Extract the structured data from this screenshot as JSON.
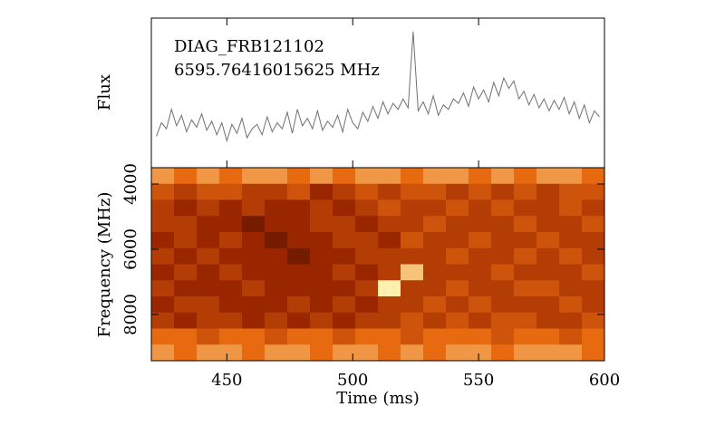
{
  "chart_data": [
    {
      "type": "line",
      "ylabel": "Flux",
      "annotations": [
        "DIAG_FRB121102",
        "6595.76416015625 MHz"
      ],
      "xlim": [
        420,
        600
      ],
      "ylim": [
        0,
        10
      ],
      "xticks": [
        450,
        500,
        550,
        600
      ],
      "x": [
        422,
        424,
        426,
        428,
        430,
        432,
        434,
        436,
        438,
        440,
        442,
        444,
        446,
        448,
        450,
        452,
        454,
        456,
        458,
        460,
        462,
        464,
        466,
        468,
        470,
        472,
        474,
        476,
        478,
        480,
        482,
        484,
        486,
        488,
        490,
        492,
        494,
        496,
        498,
        500,
        502,
        504,
        506,
        508,
        510,
        512,
        514,
        516,
        518,
        520,
        522,
        524,
        526,
        528,
        530,
        532,
        534,
        536,
        538,
        540,
        542,
        544,
        546,
        548,
        550,
        552,
        554,
        556,
        558,
        560,
        562,
        564,
        566,
        568,
        570,
        572,
        574,
        576,
        578,
        580,
        582,
        584,
        586,
        588,
        590,
        592,
        594,
        596,
        598
      ],
      "series": [
        {
          "color": "#707070",
          "values": [
            2.1,
            3.0,
            2.6,
            3.9,
            2.8,
            3.5,
            2.4,
            3.2,
            2.7,
            3.6,
            2.5,
            3.1,
            2.2,
            3.0,
            1.8,
            2.9,
            2.3,
            3.3,
            2.0,
            2.6,
            2.9,
            2.2,
            3.4,
            2.4,
            3.0,
            2.6,
            3.7,
            2.3,
            3.9,
            2.8,
            3.3,
            2.6,
            3.8,
            2.5,
            3.1,
            2.7,
            3.5,
            2.4,
            3.9,
            3.0,
            2.6,
            3.7,
            3.1,
            4.1,
            3.3,
            4.4,
            3.6,
            4.3,
            3.9,
            4.6,
            4.0,
            9.1,
            3.8,
            4.4,
            3.6,
            4.8,
            3.5,
            4.2,
            3.9,
            4.6,
            4.3,
            5.0,
            4.1,
            5.4,
            4.6,
            5.2,
            4.4,
            5.7,
            4.8,
            6.0,
            5.3,
            5.8,
            4.6,
            5.1,
            4.2,
            4.9,
            4.0,
            4.6,
            3.8,
            4.5,
            3.9,
            4.7,
            3.6,
            4.4,
            3.3,
            4.2,
            3.0,
            3.8,
            3.4
          ]
        }
      ]
    },
    {
      "type": "heatmap",
      "xlabel": "Time (ms)",
      "ylabel": "Frequency (MHz)",
      "xlim": [
        420,
        600
      ],
      "ylim": [
        3500,
        9420
      ],
      "xticks": [
        450,
        500,
        550,
        600
      ],
      "yticks": [
        4000,
        6000,
        8000
      ],
      "zlim": [
        0,
        9
      ],
      "colors": [
        "#2a0500",
        "#9a2600",
        "#e86a10",
        "#fff0b0"
      ],
      "z": [
        [
          7,
          6,
          7,
          6,
          7,
          7,
          6,
          7,
          6,
          7,
          7,
          6,
          7,
          7,
          6,
          7,
          6,
          7,
          7,
          6
        ],
        [
          5,
          4,
          5,
          5,
          4,
          4,
          5,
          3,
          4,
          5,
          4,
          5,
          5,
          4,
          5,
          4,
          5,
          4,
          5,
          5
        ],
        [
          4,
          3,
          4,
          3,
          4,
          3,
          3,
          4,
          3,
          4,
          5,
          4,
          4,
          5,
          4,
          5,
          4,
          4,
          5,
          4
        ],
        [
          4,
          4,
          3,
          3,
          2,
          3,
          3,
          4,
          4,
          3,
          4,
          4,
          5,
          4,
          4,
          4,
          5,
          4,
          4,
          5
        ],
        [
          3,
          4,
          3,
          4,
          3,
          2,
          3,
          3,
          4,
          4,
          3,
          5,
          4,
          4,
          5,
          4,
          4,
          5,
          4,
          4
        ],
        [
          4,
          3,
          4,
          3,
          3,
          3,
          2,
          3,
          3,
          4,
          4,
          4,
          4,
          5,
          4,
          4,
          5,
          4,
          5,
          4
        ],
        [
          3,
          4,
          3,
          4,
          3,
          3,
          3,
          3,
          4,
          3,
          4,
          8,
          4,
          4,
          4,
          5,
          4,
          4,
          4,
          5
        ],
        [
          4,
          3,
          3,
          3,
          4,
          3,
          3,
          3,
          3,
          4,
          9,
          4,
          4,
          5,
          4,
          4,
          5,
          5,
          4,
          4
        ],
        [
          3,
          4,
          4,
          3,
          3,
          3,
          4,
          3,
          4,
          3,
          4,
          4,
          5,
          4,
          5,
          4,
          4,
          4,
          5,
          4
        ],
        [
          4,
          3,
          4,
          4,
          3,
          4,
          3,
          4,
          3,
          4,
          4,
          5,
          4,
          5,
          4,
          5,
          5,
          4,
          4,
          5
        ],
        [
          6,
          6,
          5,
          6,
          6,
          5,
          6,
          6,
          5,
          6,
          6,
          5,
          6,
          6,
          6,
          5,
          6,
          6,
          5,
          6
        ],
        [
          7,
          6,
          7,
          7,
          6,
          7,
          7,
          6,
          7,
          7,
          6,
          7,
          6,
          7,
          7,
          6,
          7,
          7,
          7,
          6
        ]
      ]
    }
  ]
}
